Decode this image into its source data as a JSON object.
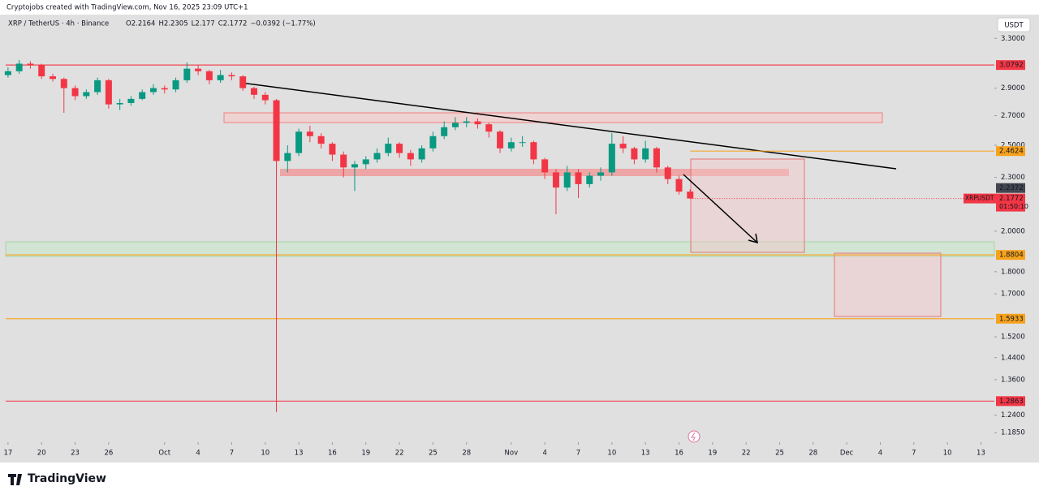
{
  "header": {
    "credit": "Cryptojobs created with TradingView.com, Nov 16, 2025 23:09 UTC+1",
    "symbol": "XRP / TetherUS · 4h · Binance",
    "ohlc": [
      {
        "key": "O",
        "value": 2.2164
      },
      {
        "key": "H",
        "value": 2.2305
      },
      {
        "key": "L",
        "value": 2.177
      },
      {
        "key": "C",
        "value": 2.1772
      }
    ],
    "change": "−0.0392 (−1.77%)",
    "currency": "USDT",
    "brand": "TradingView"
  },
  "chart_data": {
    "type": "candlestick",
    "up_color": "#089981",
    "down_color": "#f23645",
    "log_scale": true,
    "x": [
      0,
      1,
      2,
      3,
      4,
      5,
      6,
      7,
      8,
      9,
      10,
      11,
      12,
      13,
      14,
      15,
      16,
      17,
      18,
      19,
      20,
      21,
      22,
      23,
      24,
      25,
      26,
      27,
      28,
      29,
      30,
      31,
      32,
      33,
      34,
      35,
      36,
      37,
      38,
      39,
      40,
      41,
      42,
      43,
      44,
      45,
      46,
      47,
      48,
      49,
      50,
      51,
      52,
      53,
      54,
      55,
      56,
      57,
      58,
      59,
      60,
      61
    ],
    "open": [
      3.0,
      3.03,
      3.09,
      3.08,
      2.99,
      2.97,
      2.9,
      2.84,
      2.87,
      2.96,
      2.78,
      2.79,
      2.82,
      2.87,
      2.9,
      2.89,
      2.96,
      3.05,
      3.03,
      2.96,
      3.0,
      2.99,
      2.9,
      2.85,
      2.81,
      2.4,
      2.45,
      2.59,
      2.56,
      2.51,
      2.44,
      2.36,
      2.38,
      2.41,
      2.45,
      2.51,
      2.45,
      2.41,
      2.48,
      2.56,
      2.62,
      2.65,
      2.66,
      2.64,
      2.59,
      2.48,
      2.52,
      2.52,
      2.41,
      2.33,
      2.24,
      2.33,
      2.26,
      2.31,
      2.33,
      2.51,
      2.48,
      2.41,
      2.48,
      2.36,
      2.29,
      2.2164
    ],
    "high": [
      3.06,
      3.12,
      3.11,
      3.09,
      3.01,
      2.98,
      2.92,
      2.89,
      2.98,
      2.97,
      2.82,
      2.84,
      2.89,
      2.93,
      2.92,
      2.98,
      3.1,
      3.08,
      3.04,
      3.04,
      3.02,
      3.0,
      2.91,
      2.87,
      2.82,
      2.5,
      2.61,
      2.63,
      2.58,
      2.52,
      2.46,
      2.4,
      2.43,
      2.48,
      2.55,
      2.52,
      2.47,
      2.5,
      2.59,
      2.66,
      2.69,
      2.69,
      2.68,
      2.65,
      2.6,
      2.55,
      2.56,
      2.53,
      2.42,
      2.35,
      2.37,
      2.35,
      2.33,
      2.36,
      2.58,
      2.56,
      2.49,
      2.53,
      2.49,
      2.37,
      2.31,
      2.2305
    ],
    "low": [
      2.98,
      3.01,
      3.05,
      2.97,
      2.95,
      2.72,
      2.81,
      2.82,
      2.85,
      2.75,
      2.74,
      2.77,
      2.81,
      2.85,
      2.86,
      2.87,
      2.94,
      3.0,
      2.93,
      2.94,
      2.96,
      2.88,
      2.82,
      2.78,
      1.25,
      2.33,
      2.43,
      2.52,
      2.48,
      2.4,
      2.3,
      2.22,
      2.35,
      2.39,
      2.43,
      2.42,
      2.37,
      2.39,
      2.46,
      2.54,
      2.6,
      2.62,
      2.61,
      2.55,
      2.45,
      2.46,
      2.49,
      2.38,
      2.29,
      2.09,
      2.22,
      2.18,
      2.24,
      2.28,
      2.31,
      2.45,
      2.38,
      2.39,
      2.33,
      2.26,
      2.2,
      2.177
    ],
    "close": [
      3.03,
      3.09,
      3.08,
      2.99,
      2.97,
      2.9,
      2.84,
      2.87,
      2.96,
      2.78,
      2.79,
      2.82,
      2.87,
      2.9,
      2.89,
      2.96,
      3.05,
      3.03,
      2.96,
      3.0,
      2.99,
      2.9,
      2.85,
      2.81,
      2.4,
      2.45,
      2.59,
      2.56,
      2.51,
      2.44,
      2.36,
      2.38,
      2.41,
      2.45,
      2.51,
      2.45,
      2.41,
      2.48,
      2.56,
      2.62,
      2.65,
      2.66,
      2.64,
      2.59,
      2.48,
      2.52,
      2.52,
      2.41,
      2.33,
      2.24,
      2.33,
      2.26,
      2.31,
      2.33,
      2.51,
      2.48,
      2.41,
      2.48,
      2.36,
      2.29,
      2.2164,
      2.1772
    ],
    "xlim": [
      -0.5,
      88.2
    ],
    "xticks": [
      {
        "value": 0,
        "label": "17"
      },
      {
        "value": 3,
        "label": "20"
      },
      {
        "value": 6,
        "label": "23"
      },
      {
        "value": 9,
        "label": "26"
      },
      {
        "value": 14,
        "label": "Oct"
      },
      {
        "value": 17,
        "label": "4"
      },
      {
        "value": 20,
        "label": "7"
      },
      {
        "value": 23,
        "label": "10"
      },
      {
        "value": 26,
        "label": "13"
      },
      {
        "value": 29,
        "label": "16"
      },
      {
        "value": 32,
        "label": "19"
      },
      {
        "value": 35,
        "label": "22"
      },
      {
        "value": 38,
        "label": "25"
      },
      {
        "value": 41,
        "label": "28"
      },
      {
        "value": 45,
        "label": "Nov"
      },
      {
        "value": 48,
        "label": "4"
      },
      {
        "value": 51,
        "label": "7"
      },
      {
        "value": 54,
        "label": "10"
      },
      {
        "value": 57,
        "label": "13"
      },
      {
        "value": 60,
        "label": "16"
      },
      {
        "value": 63,
        "label": "19"
      },
      {
        "value": 66,
        "label": "22"
      },
      {
        "value": 69,
        "label": "25"
      },
      {
        "value": 72,
        "label": "28"
      },
      {
        "value": 75,
        "label": "Dec"
      },
      {
        "value": 78,
        "label": "4"
      },
      {
        "value": 81,
        "label": "7"
      },
      {
        "value": 84,
        "label": "10"
      },
      {
        "value": 87,
        "label": "13"
      }
    ],
    "ylim": [
      1.156,
      3.51
    ],
    "yticks": [
      {
        "value": 3.3,
        "label": "3.3000"
      },
      {
        "value": 2.9,
        "label": "2.9000"
      },
      {
        "value": 2.7,
        "label": "2.7000"
      },
      {
        "value": 2.5,
        "label": "2.5000"
      },
      {
        "value": 2.3,
        "label": "2.3000"
      },
      {
        "value": 2.0,
        "label": "2.0000"
      },
      {
        "value": 1.8,
        "label": "1.8000"
      },
      {
        "value": 1.7,
        "label": "1.7000"
      },
      {
        "value": 1.52,
        "label": "1.5200"
      },
      {
        "value": 1.44,
        "label": "1.4400"
      },
      {
        "value": 1.36,
        "label": "1.3600"
      },
      {
        "value": 1.24,
        "label": "1.2400"
      },
      {
        "value": 1.185,
        "label": "1.1850"
      }
    ],
    "price_lines": [
      {
        "value": 3.0792,
        "color": "#f23645"
      },
      {
        "value": 2.4624,
        "color": "#f7a21b",
        "x_start": 61
      },
      {
        "value": 1.8804,
        "color": "#f7a21b"
      },
      {
        "value": 1.5933,
        "color": "#f7a21b"
      },
      {
        "value": 1.2863,
        "color": "#f23645"
      }
    ],
    "marker": {
      "value": 2.2372,
      "color": "#434651"
    },
    "last_price": {
      "symbol": "XRPUSDT",
      "value": 2.1772,
      "countdown": "01:50:10",
      "color": "#f23645"
    }
  }
}
